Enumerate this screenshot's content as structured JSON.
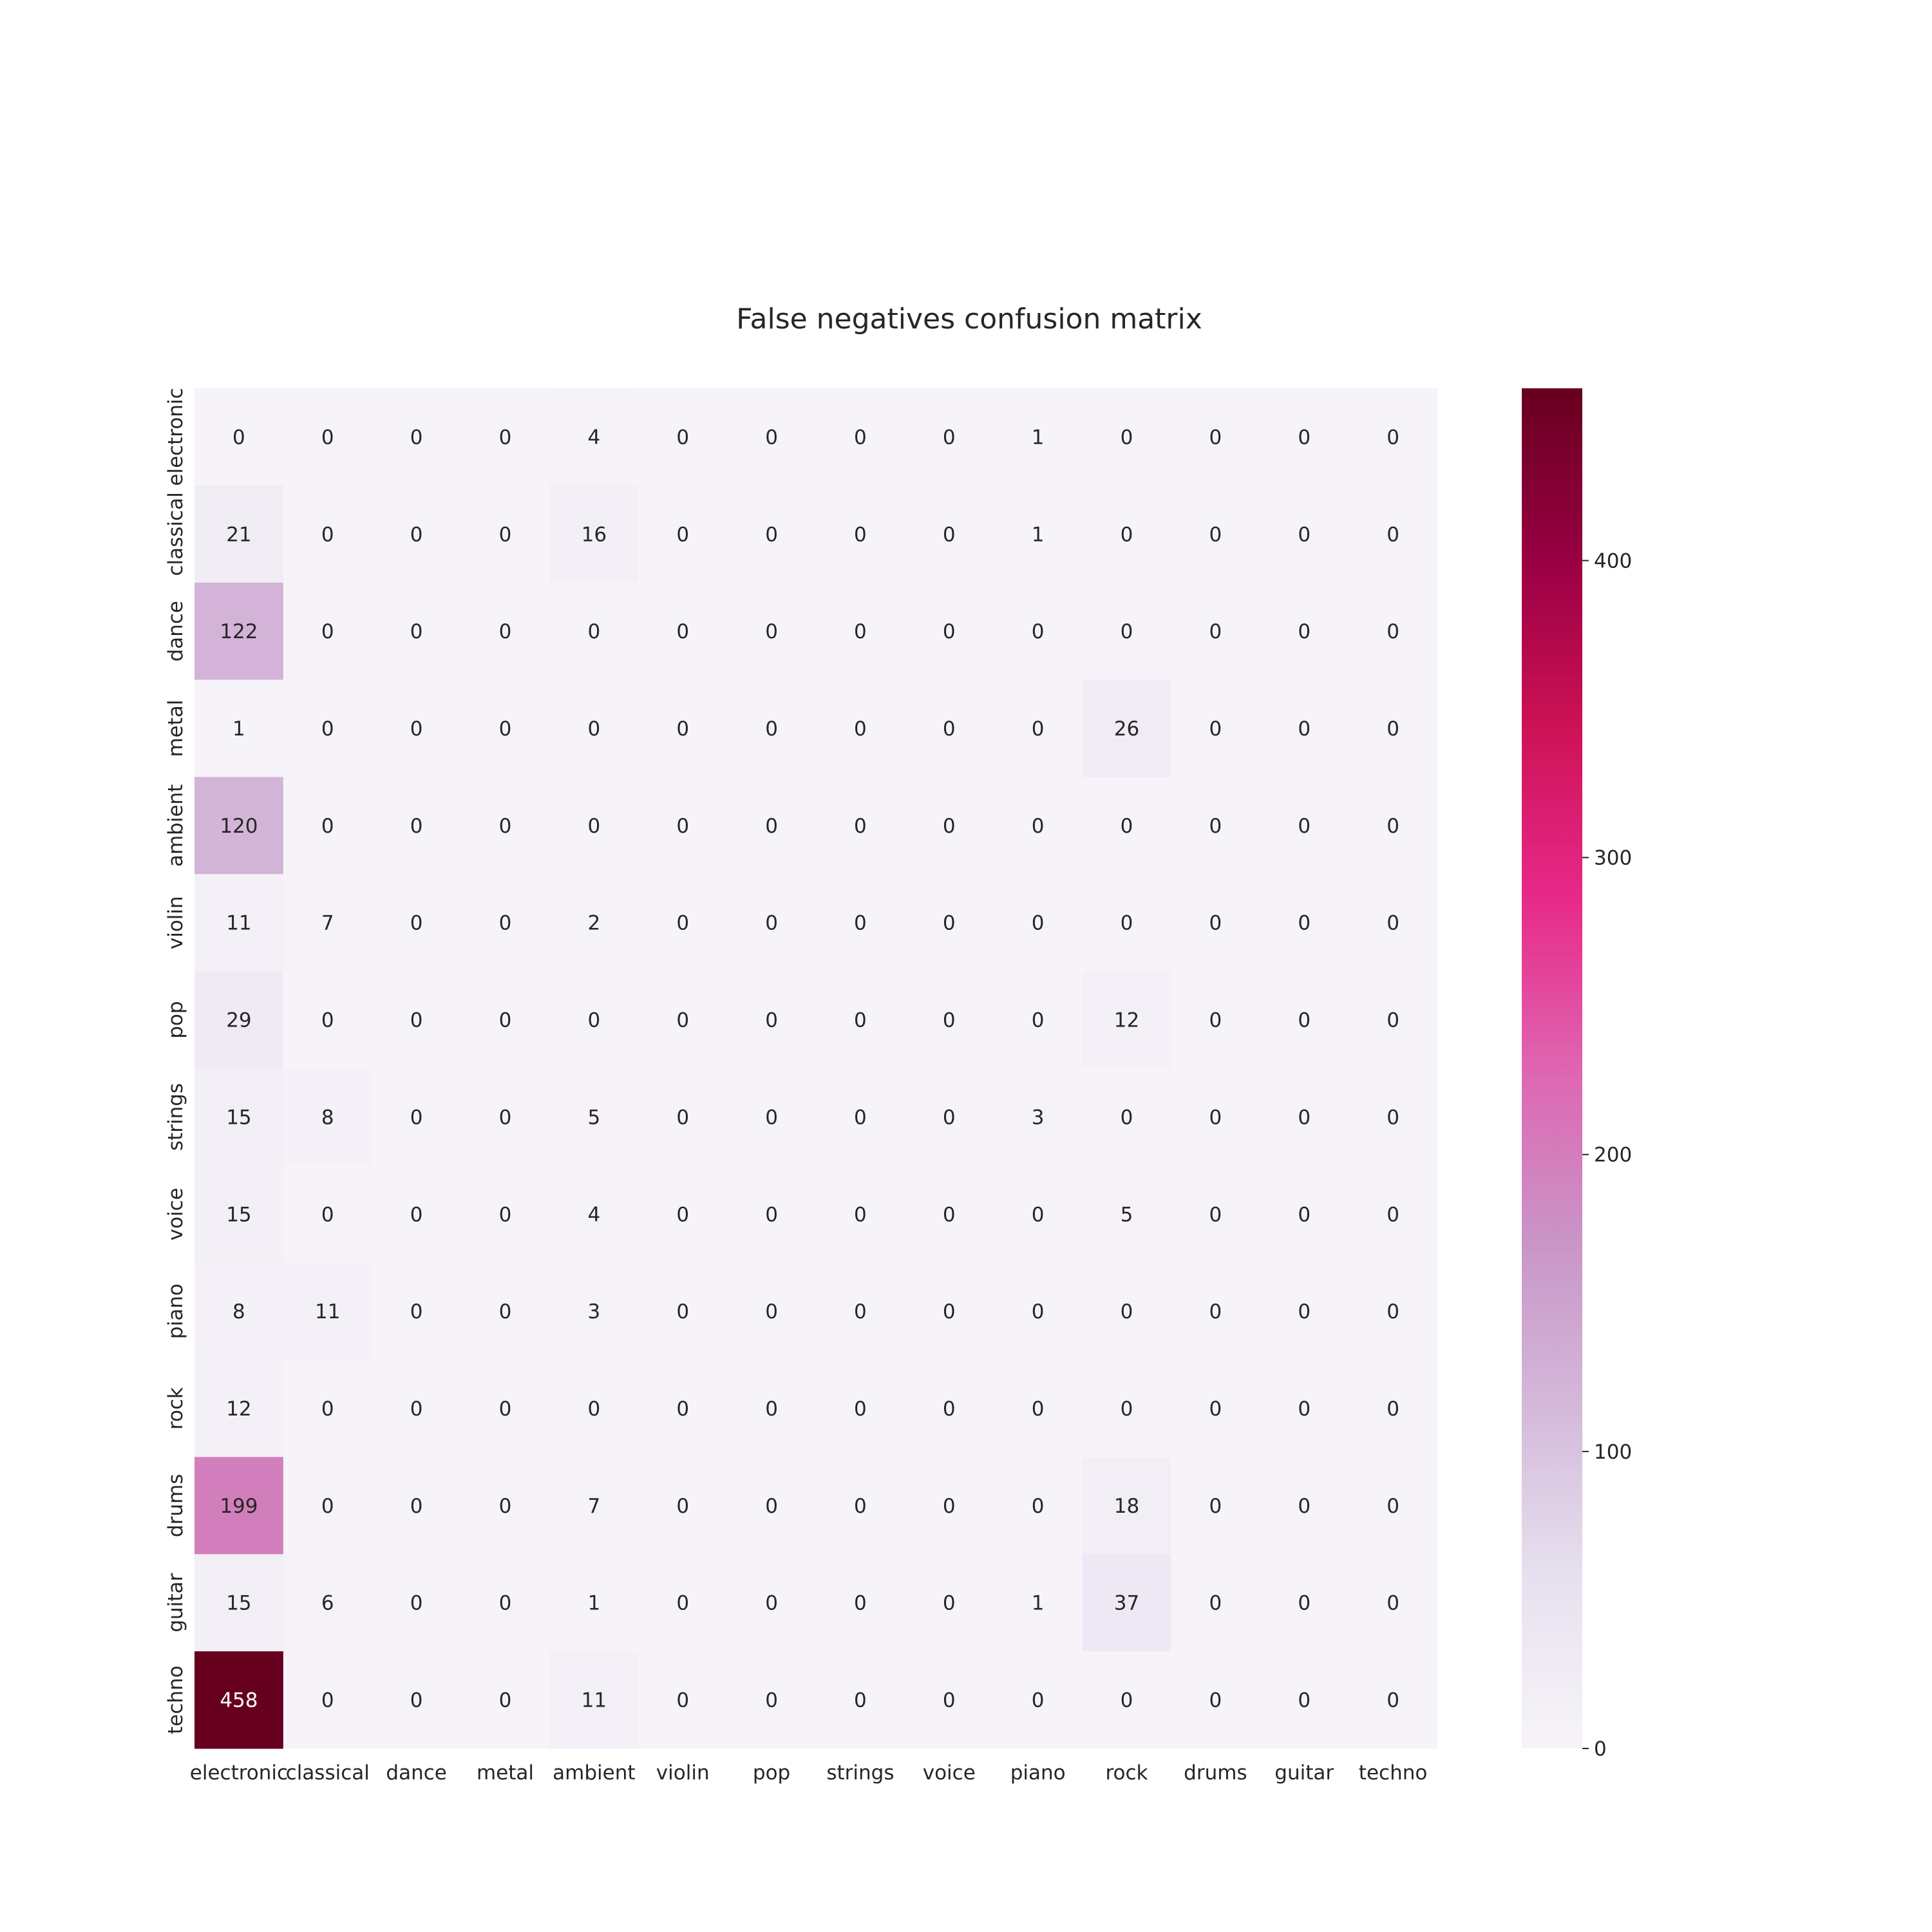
{
  "chart_data": {
    "type": "heatmap",
    "title": "False negatives confusion matrix",
    "x_categories": [
      "electronic",
      "classical",
      "dance",
      "metal",
      "ambient",
      "violin",
      "pop",
      "strings",
      "voice",
      "piano",
      "rock",
      "drums",
      "guitar",
      "techno"
    ],
    "y_categories": [
      "electronic",
      "classical",
      "dance",
      "metal",
      "ambient",
      "violin",
      "pop",
      "strings",
      "voice",
      "piano",
      "rock",
      "drums",
      "guitar",
      "techno"
    ],
    "values": [
      [
        0,
        0,
        0,
        0,
        4,
        0,
        0,
        0,
        0,
        1,
        0,
        0,
        0,
        0
      ],
      [
        21,
        0,
        0,
        0,
        16,
        0,
        0,
        0,
        0,
        1,
        0,
        0,
        0,
        0
      ],
      [
        122,
        0,
        0,
        0,
        0,
        0,
        0,
        0,
        0,
        0,
        0,
        0,
        0,
        0
      ],
      [
        1,
        0,
        0,
        0,
        0,
        0,
        0,
        0,
        0,
        0,
        26,
        0,
        0,
        0
      ],
      [
        120,
        0,
        0,
        0,
        0,
        0,
        0,
        0,
        0,
        0,
        0,
        0,
        0,
        0
      ],
      [
        11,
        7,
        0,
        0,
        2,
        0,
        0,
        0,
        0,
        0,
        0,
        0,
        0,
        0
      ],
      [
        29,
        0,
        0,
        0,
        0,
        0,
        0,
        0,
        0,
        0,
        12,
        0,
        0,
        0
      ],
      [
        15,
        8,
        0,
        0,
        5,
        0,
        0,
        0,
        0,
        3,
        0,
        0,
        0,
        0
      ],
      [
        15,
        0,
        0,
        0,
        4,
        0,
        0,
        0,
        0,
        0,
        5,
        0,
        0,
        0
      ],
      [
        8,
        11,
        0,
        0,
        3,
        0,
        0,
        0,
        0,
        0,
        0,
        0,
        0,
        0
      ],
      [
        12,
        0,
        0,
        0,
        0,
        0,
        0,
        0,
        0,
        0,
        0,
        0,
        0,
        0
      ],
      [
        199,
        0,
        0,
        0,
        7,
        0,
        0,
        0,
        0,
        0,
        18,
        0,
        0,
        0
      ],
      [
        15,
        6,
        0,
        0,
        1,
        0,
        0,
        0,
        0,
        1,
        37,
        0,
        0,
        0
      ],
      [
        458,
        0,
        0,
        0,
        11,
        0,
        0,
        0,
        0,
        0,
        0,
        0,
        0,
        0
      ]
    ],
    "colorbar": {
      "min": 0,
      "max": 458,
      "ticks": [
        0,
        100,
        200,
        300,
        400
      ]
    },
    "colormap": [
      "#f7f4f9",
      "#e7e1ef",
      "#d4b9da",
      "#c994c7",
      "#df65b0",
      "#e7298a",
      "#ce1256",
      "#980043",
      "#67001f"
    ]
  }
}
